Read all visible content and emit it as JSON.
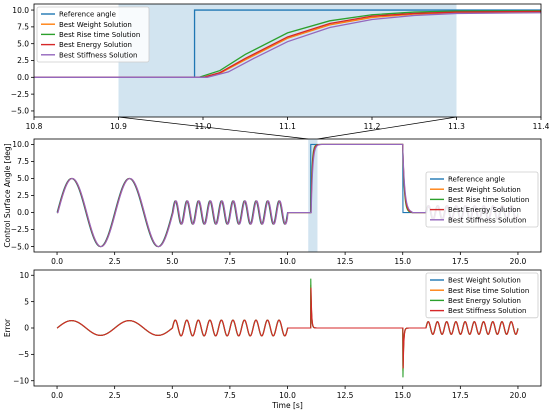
{
  "chart_data": [
    {
      "type": "line",
      "panel": "zoom",
      "xlabel": "",
      "ylabel": "",
      "xlim": [
        10.8,
        11.4
      ],
      "ylim": [
        -5.9,
        10.9
      ],
      "grid": false,
      "legend_position": "top-left",
      "xticks": [
        "10.8",
        "10.9",
        "11.0",
        "11.1",
        "11.2",
        "11.3",
        "11.4"
      ],
      "yticks": [
        "−5.0",
        "−2.5",
        "0.0",
        "2.5",
        "5.0",
        "7.5",
        "10.0"
      ],
      "highlight_span": [
        10.9,
        11.3
      ],
      "series": [
        {
          "name": "Reference angle",
          "color": "#1f77b4",
          "points": [
            [
              10.8,
              0
            ],
            [
              10.99,
              0
            ],
            [
              10.99,
              10
            ],
            [
              11.4,
              10
            ]
          ]
        },
        {
          "name": "Best Weight Solution",
          "color": "#ff7f0e",
          "points": [
            [
              10.8,
              0
            ],
            [
              11.0,
              0
            ],
            [
              11.02,
              0.6
            ],
            [
              11.05,
              2.6
            ],
            [
              11.1,
              5.8
            ],
            [
              11.15,
              7.8
            ],
            [
              11.2,
              8.9
            ],
            [
              11.25,
              9.4
            ],
            [
              11.3,
              9.6
            ],
            [
              11.4,
              9.7
            ]
          ]
        },
        {
          "name": "Best Rise time Solution",
          "color": "#2ca02c",
          "points": [
            [
              10.8,
              0
            ],
            [
              10.995,
              0
            ],
            [
              11.02,
              1.0
            ],
            [
              11.05,
              3.4
            ],
            [
              11.1,
              6.6
            ],
            [
              11.15,
              8.4
            ],
            [
              11.2,
              9.3
            ],
            [
              11.25,
              9.7
            ],
            [
              11.3,
              9.85
            ],
            [
              11.4,
              9.9
            ]
          ]
        },
        {
          "name": "Best Energy Solution",
          "color": "#d62728",
          "points": [
            [
              10.8,
              0
            ],
            [
              11.0,
              0
            ],
            [
              11.02,
              0.7
            ],
            [
              11.05,
              2.8
            ],
            [
              11.1,
              6.0
            ],
            [
              11.15,
              8.0
            ],
            [
              11.2,
              9.1
            ],
            [
              11.25,
              9.5
            ],
            [
              11.3,
              9.7
            ],
            [
              11.4,
              9.8
            ]
          ]
        },
        {
          "name": "Best Stiffness Solution",
          "color": "#9467bd",
          "points": [
            [
              10.8,
              0
            ],
            [
              11.005,
              0
            ],
            [
              11.03,
              0.8
            ],
            [
              11.06,
              2.8
            ],
            [
              11.1,
              5.3
            ],
            [
              11.15,
              7.4
            ],
            [
              11.2,
              8.6
            ],
            [
              11.25,
              9.2
            ],
            [
              11.3,
              9.5
            ],
            [
              11.4,
              9.6
            ]
          ]
        }
      ]
    },
    {
      "type": "line",
      "panel": "full",
      "xlabel": "",
      "ylabel": "Control Surface Angle [deg]",
      "xlim": [
        -1.0,
        21.0
      ],
      "ylim": [
        -5.8,
        10.8
      ],
      "grid": false,
      "legend_position": "right",
      "xticks": [
        "0.0",
        "2.5",
        "5.0",
        "7.5",
        "10.0",
        "12.5",
        "15.0",
        "17.5",
        "20.0"
      ],
      "yticks": [
        "−5.0",
        "−2.5",
        "0.0",
        "2.5",
        "5.0",
        "7.5",
        "10.0"
      ],
      "highlight_span": [
        10.9,
        11.3
      ],
      "signal": {
        "segments": [
          {
            "from": 0,
            "to": 5,
            "kind": "sine",
            "amplitude": 5,
            "frequency_hz": 0.4
          },
          {
            "from": 5,
            "to": 10,
            "kind": "sine",
            "amplitude": 1.7,
            "frequency_hz": 2
          },
          {
            "from": 10,
            "to": 11,
            "kind": "constant",
            "value": 0
          },
          {
            "from": 11,
            "to": 15,
            "kind": "step",
            "value": 10
          },
          {
            "from": 15,
            "to": 16,
            "kind": "constant",
            "value": 0
          },
          {
            "from": 16,
            "to": 20,
            "kind": "sine",
            "amplitude": 1,
            "frequency_hz": 2.5
          }
        ]
      },
      "series": [
        {
          "name": "Reference angle",
          "color": "#1f77b4"
        },
        {
          "name": "Best Weight Solution",
          "color": "#ff7f0e"
        },
        {
          "name": "Best Rise time Solution",
          "color": "#2ca02c"
        },
        {
          "name": "Best Energy Solution",
          "color": "#d62728"
        },
        {
          "name": "Best Stiffness Solution",
          "color": "#9467bd"
        }
      ]
    },
    {
      "type": "line",
      "panel": "error",
      "xlabel": "Time [s]",
      "ylabel": "Error",
      "xlim": [
        -1.0,
        21.0
      ],
      "ylim": [
        -11.0,
        11.0
      ],
      "grid": false,
      "legend_position": "top-right",
      "xticks": [
        "0.0",
        "2.5",
        "5.0",
        "7.5",
        "10.0",
        "12.5",
        "15.0",
        "17.5",
        "20.0"
      ],
      "yticks": [
        "−10",
        "−5",
        "0",
        "5",
        "10"
      ],
      "signal": {
        "segments": [
          {
            "from": 0,
            "to": 5,
            "kind": "sine",
            "amplitude": 1.4,
            "frequency_hz": 0.4
          },
          {
            "from": 5,
            "to": 10,
            "kind": "sine",
            "amplitude": 1.5,
            "frequency_hz": 2
          },
          {
            "from": 10,
            "to": 11,
            "kind": "constant",
            "value": 0
          },
          {
            "from": 11,
            "to": 11.3,
            "kind": "decay",
            "peak": 10
          },
          {
            "from": 11.3,
            "to": 15,
            "kind": "constant",
            "value": 0
          },
          {
            "from": 15,
            "to": 15.3,
            "kind": "decay",
            "peak": -10
          },
          {
            "from": 15.3,
            "to": 16,
            "kind": "constant",
            "value": 0
          },
          {
            "from": 16,
            "to": 20,
            "kind": "sine",
            "amplitude": 1.2,
            "frequency_hz": 2.5
          }
        ]
      },
      "series": [
        {
          "name": "Best Weight Solution",
          "color": "#1f77b4"
        },
        {
          "name": "Best Rise time Solution",
          "color": "#ff7f0e"
        },
        {
          "name": "Best Energy Solution",
          "color": "#2ca02c"
        },
        {
          "name": "Best Stiffness Solution",
          "color": "#d62728"
        }
      ]
    }
  ]
}
